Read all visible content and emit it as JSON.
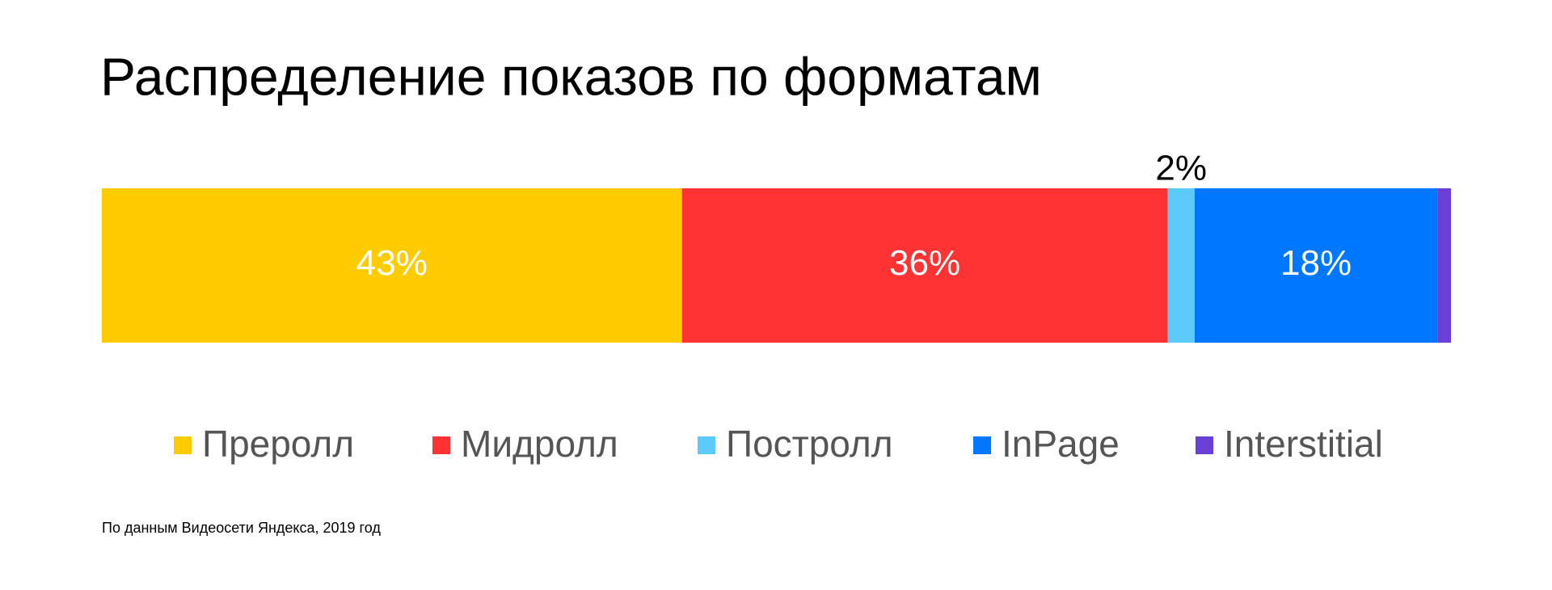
{
  "chart_data": {
    "type": "stacked-bar",
    "title": "Распределение показов по форматам",
    "categories": [
      "Преролл",
      "Мидролл",
      "Постролл",
      "InPage",
      "Interstitial"
    ],
    "values": [
      43,
      36,
      2,
      18,
      1
    ],
    "value_labels": [
      "43%",
      "36%",
      "2%",
      "18%",
      null
    ],
    "colors": [
      "#ffcc00",
      "#ff3333",
      "#5ccbfa",
      "#0077ff",
      "#6a3fd6"
    ],
    "xlim": [
      0,
      100
    ],
    "legend": "bottom",
    "note": "По данным Видеосети Яндекса, 2019 год"
  }
}
